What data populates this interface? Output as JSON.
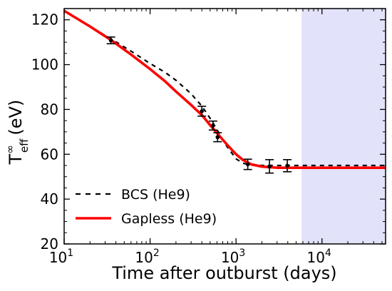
{
  "chart_data": {
    "type": "line",
    "xscale": "log",
    "xlim": [
      10,
      55000
    ],
    "ylim": [
      20,
      125
    ],
    "xlabel": "Time after outburst (days)",
    "ylabel": {
      "base": "T",
      "superscript": "∞",
      "subscript": "eff",
      "unit": "(eV)"
    },
    "x_ticks": [
      {
        "value": 10,
        "base": "10",
        "exp": "1"
      },
      {
        "value": 100,
        "base": "10",
        "exp": "2"
      },
      {
        "value": 1000,
        "base": "10",
        "exp": "3"
      },
      {
        "value": 10000,
        "base": "10",
        "exp": "4"
      }
    ],
    "y_ticks": [
      20,
      40,
      60,
      80,
      100,
      120
    ],
    "shaded_region": {
      "x_start": 5800,
      "x_end": 55000,
      "color": "#e2e2fa"
    },
    "series": [
      {
        "name": "BCS (He9)",
        "style": "dashed",
        "color": "#000000",
        "x": [
          10,
          20,
          35,
          60,
          100,
          150,
          200,
          300,
          400,
          500,
          600,
          700,
          800,
          1000,
          1200,
          1500,
          2000,
          5000,
          55000
        ],
        "y": [
          124,
          117,
          111.5,
          106,
          100.5,
          96.5,
          93,
          87,
          81.5,
          76,
          71,
          66.5,
          63,
          58,
          56,
          55.2,
          55,
          55,
          55
        ]
      },
      {
        "name": "Gapless (He9)",
        "style": "solid",
        "color": "#ff0000",
        "x": [
          10,
          20,
          35,
          60,
          100,
          150,
          200,
          300,
          400,
          500,
          600,
          700,
          800,
          1000,
          1200,
          1500,
          2000,
          3000,
          5000,
          55000
        ],
        "y": [
          124,
          117,
          111,
          104.5,
          98,
          92.5,
          88,
          82,
          77.5,
          73,
          69.5,
          66.5,
          64,
          60,
          57.5,
          55.5,
          54.5,
          54,
          54,
          54
        ]
      }
    ],
    "observations": {
      "x": [
        35,
        400,
        540,
        610,
        1370,
        2450,
        3950
      ],
      "y": [
        110.8,
        79.2,
        72.8,
        67.6,
        55.5,
        54.6,
        54.9
      ],
      "yerr": [
        1.5,
        2.2,
        2.0,
        2.0,
        2.3,
        3.0,
        2.7
      ]
    },
    "legend": {
      "position": "lower-left",
      "entries": [
        {
          "label": "BCS (He9)",
          "style": "dashed",
          "color": "#000000"
        },
        {
          "label": "Gapless (He9)",
          "style": "solid",
          "color": "#ff0000"
        }
      ]
    },
    "grid": false
  }
}
